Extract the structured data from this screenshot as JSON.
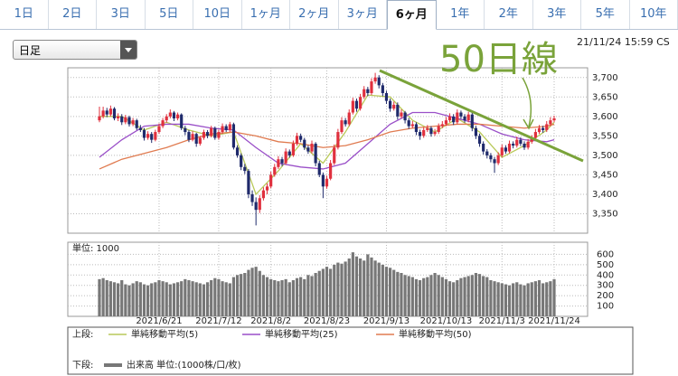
{
  "tabs": [
    "1日",
    "2日",
    "3日",
    "5日",
    "10日",
    "1ヶ月",
    "2ヶ月",
    "3ヶ月",
    "6ヶ月",
    "1年",
    "2年",
    "3年",
    "5年",
    "10年"
  ],
  "selected_tab": "6ヶ月",
  "dropdown": "日足",
  "timestamp": "21/11/24 15:59 CS",
  "chart_data": {
    "type": "candlestick",
    "annotation": "50日線",
    "up_color": "#e0303e",
    "down_color": "#1f2a6b",
    "categories": [
      null,
      null,
      null,
      null,
      null,
      null,
      null,
      null,
      null,
      null,
      null,
      null,
      null,
      null,
      null,
      null,
      "2021/6/21",
      null,
      null,
      null,
      null,
      null,
      null,
      null,
      null,
      null,
      null,
      null,
      null,
      null,
      null,
      null,
      "2021/7/12",
      null,
      null,
      null,
      null,
      null,
      null,
      null,
      null,
      null,
      null,
      null,
      null,
      null,
      "2021/8/2",
      null,
      null,
      null,
      null,
      null,
      null,
      null,
      null,
      null,
      null,
      null,
      null,
      null,
      null,
      "2021/8/23",
      null,
      null,
      null,
      null,
      null,
      null,
      null,
      null,
      null,
      null,
      null,
      null,
      null,
      null,
      null,
      "2021/9/13",
      null,
      null,
      null,
      null,
      null,
      null,
      null,
      null,
      null,
      null,
      null,
      null,
      null,
      null,
      null,
      "2021/10/13",
      null,
      null,
      null,
      null,
      null,
      null,
      null,
      null,
      null,
      null,
      null,
      null,
      null,
      null,
      "2021/11/3",
      null,
      null,
      null,
      null,
      null,
      null,
      null,
      null,
      null,
      null,
      null,
      null,
      null,
      "2021/11/24"
    ],
    "ohlc": [
      [
        3590,
        3625,
        3585,
        3600
      ],
      [
        3600,
        3625,
        3595,
        3615
      ],
      [
        3615,
        3622,
        3598,
        3605
      ],
      [
        3605,
        3628,
        3600,
        3620
      ],
      [
        3620,
        3624,
        3590,
        3595
      ],
      [
        3595,
        3608,
        3588,
        3600
      ],
      [
        3600,
        3606,
        3578,
        3585
      ],
      [
        3585,
        3604,
        3580,
        3598
      ],
      [
        3598,
        3602,
        3574,
        3580
      ],
      [
        3580,
        3596,
        3575,
        3590
      ],
      [
        3590,
        3594,
        3565,
        3570
      ],
      [
        3570,
        3578,
        3560,
        3565
      ],
      [
        3565,
        3570,
        3538,
        3545
      ],
      [
        3545,
        3562,
        3540,
        3555
      ],
      [
        3555,
        3560,
        3532,
        3540
      ],
      [
        3540,
        3566,
        3536,
        3560
      ],
      [
        3560,
        3582,
        3555,
        3575
      ],
      [
        3575,
        3596,
        3570,
        3590
      ],
      [
        3590,
        3606,
        3584,
        3600
      ],
      [
        3600,
        3618,
        3595,
        3610
      ],
      [
        3610,
        3614,
        3588,
        3595
      ],
      [
        3595,
        3610,
        3590,
        3605
      ],
      [
        3605,
        3608,
        3565,
        3570
      ],
      [
        3570,
        3576,
        3552,
        3560
      ],
      [
        3560,
        3565,
        3534,
        3540
      ],
      [
        3540,
        3562,
        3536,
        3555
      ],
      [
        3555,
        3558,
        3522,
        3530
      ],
      [
        3530,
        3550,
        3525,
        3545
      ],
      [
        3545,
        3566,
        3540,
        3560
      ],
      [
        3560,
        3565,
        3544,
        3550
      ],
      [
        3550,
        3576,
        3546,
        3570
      ],
      [
        3570,
        3574,
        3540,
        3545
      ],
      [
        3545,
        3566,
        3540,
        3560
      ],
      [
        3560,
        3582,
        3555,
        3575
      ],
      [
        3575,
        3580,
        3560,
        3565
      ],
      [
        3565,
        3586,
        3560,
        3580
      ],
      [
        3580,
        3584,
        3515,
        3520
      ],
      [
        3520,
        3526,
        3494,
        3500
      ],
      [
        3500,
        3505,
        3462,
        3470
      ],
      [
        3470,
        3478,
        3452,
        3460
      ],
      [
        3460,
        3465,
        3390,
        3400
      ],
      [
        3400,
        3410,
        3370,
        3380
      ],
      [
        3380,
        3392,
        3320,
        3360
      ],
      [
        3360,
        3398,
        3352,
        3390
      ],
      [
        3390,
        3418,
        3384,
        3410
      ],
      [
        3410,
        3428,
        3400,
        3420
      ],
      [
        3420,
        3458,
        3415,
        3450
      ],
      [
        3450,
        3478,
        3445,
        3470
      ],
      [
        3470,
        3498,
        3465,
        3490
      ],
      [
        3490,
        3496,
        3472,
        3480
      ],
      [
        3480,
        3518,
        3476,
        3510
      ],
      [
        3510,
        3515,
        3494,
        3500
      ],
      [
        3500,
        3538,
        3496,
        3530
      ],
      [
        3530,
        3558,
        3525,
        3550
      ],
      [
        3550,
        3556,
        3534,
        3540
      ],
      [
        3540,
        3545,
        3514,
        3520
      ],
      [
        3520,
        3526,
        3504,
        3510
      ],
      [
        3510,
        3538,
        3505,
        3530
      ],
      [
        3530,
        3534,
        3472,
        3480
      ],
      [
        3480,
        3486,
        3444,
        3450
      ],
      [
        3450,
        3456,
        3390,
        3420
      ],
      [
        3420,
        3448,
        3414,
        3440
      ],
      [
        3440,
        3488,
        3436,
        3480
      ],
      [
        3480,
        3528,
        3475,
        3520
      ],
      [
        3520,
        3568,
        3515,
        3560
      ],
      [
        3560,
        3598,
        3555,
        3590
      ],
      [
        3590,
        3596,
        3574,
        3580
      ],
      [
        3580,
        3618,
        3575,
        3610
      ],
      [
        3610,
        3648,
        3605,
        3640
      ],
      [
        3640,
        3646,
        3612,
        3620
      ],
      [
        3620,
        3658,
        3615,
        3650
      ],
      [
        3650,
        3678,
        3645,
        3670
      ],
      [
        3670,
        3676,
        3652,
        3660
      ],
      [
        3660,
        3698,
        3655,
        3690
      ],
      [
        3690,
        3712,
        3684,
        3700
      ],
      [
        3700,
        3706,
        3672,
        3680
      ],
      [
        3680,
        3686,
        3652,
        3660
      ],
      [
        3660,
        3666,
        3632,
        3640
      ],
      [
        3640,
        3646,
        3612,
        3620
      ],
      [
        3620,
        3638,
        3615,
        3630
      ],
      [
        3630,
        3636,
        3592,
        3600
      ],
      [
        3600,
        3618,
        3595,
        3610
      ],
      [
        3610,
        3614,
        3582,
        3590
      ],
      [
        3590,
        3596,
        3568,
        3575
      ],
      [
        3575,
        3588,
        3570,
        3580
      ],
      [
        3580,
        3585,
        3552,
        3560
      ],
      [
        3560,
        3566,
        3540,
        3550
      ],
      [
        3550,
        3572,
        3545,
        3565
      ],
      [
        3565,
        3578,
        3560,
        3570
      ],
      [
        3570,
        3575,
        3548,
        3555
      ],
      [
        3555,
        3568,
        3550,
        3560
      ],
      [
        3560,
        3582,
        3555,
        3575
      ],
      [
        3575,
        3588,
        3570,
        3580
      ],
      [
        3580,
        3598,
        3575,
        3590
      ],
      [
        3590,
        3608,
        3585,
        3600
      ],
      [
        3600,
        3606,
        3578,
        3585
      ],
      [
        3585,
        3618,
        3580,
        3610
      ],
      [
        3610,
        3615,
        3594,
        3600
      ],
      [
        3600,
        3606,
        3584,
        3590
      ],
      [
        3590,
        3612,
        3585,
        3605
      ],
      [
        3605,
        3610,
        3562,
        3570
      ],
      [
        3570,
        3576,
        3542,
        3550
      ],
      [
        3550,
        3556,
        3522,
        3530
      ],
      [
        3530,
        3536,
        3502,
        3510
      ],
      [
        3510,
        3516,
        3492,
        3500
      ],
      [
        3500,
        3506,
        3482,
        3490
      ],
      [
        3490,
        3496,
        3455,
        3480
      ],
      [
        3480,
        3508,
        3475,
        3500
      ],
      [
        3500,
        3528,
        3495,
        3520
      ],
      [
        3520,
        3526,
        3504,
        3510
      ],
      [
        3510,
        3538,
        3505,
        3530
      ],
      [
        3530,
        3536,
        3518,
        3525
      ],
      [
        3525,
        3548,
        3520,
        3540
      ],
      [
        3540,
        3546,
        3524,
        3530
      ],
      [
        3530,
        3536,
        3514,
        3520
      ],
      [
        3520,
        3542,
        3515,
        3535
      ],
      [
        3535,
        3552,
        3530,
        3545
      ],
      [
        3545,
        3568,
        3540,
        3560
      ],
      [
        3560,
        3578,
        3555,
        3570
      ],
      [
        3570,
        3576,
        3558,
        3565
      ],
      [
        3565,
        3588,
        3560,
        3580
      ],
      [
        3580,
        3598,
        3575,
        3590
      ],
      [
        3590,
        3602,
        3585,
        3595
      ]
    ],
    "ylim": [
      3300,
      3725
    ],
    "yticks": [
      {
        "value": 3350,
        "label": "3,350"
      },
      {
        "value": 3400,
        "label": "3,400"
      },
      {
        "value": 3450,
        "label": "3,450"
      },
      {
        "value": 3500,
        "label": "3,500"
      },
      {
        "value": 3550,
        "label": "3,550"
      },
      {
        "value": 3600,
        "label": "3,600"
      },
      {
        "value": 3650,
        "label": "3,650"
      },
      {
        "value": 3700,
        "label": "3,700"
      }
    ],
    "ma_series": [
      {
        "name": "単純移動平均(5)",
        "color": "#b9c95a",
        "x": [
          0,
          6,
          12,
          18,
          24,
          30,
          36,
          42,
          48,
          54,
          60,
          66,
          72,
          78,
          84,
          90,
          96,
          102,
          108,
          114,
          120,
          122
        ],
        "values": [
          3600,
          3600,
          3565,
          3585,
          3565,
          3550,
          3560,
          3400,
          3460,
          3530,
          3480,
          3560,
          3655,
          3650,
          3590,
          3560,
          3595,
          3560,
          3495,
          3525,
          3565,
          3585
        ]
      },
      {
        "name": "単純移動平均(25)",
        "color": "#9a4fc8",
        "x": [
          0,
          6,
          12,
          18,
          24,
          30,
          36,
          42,
          48,
          54,
          60,
          66,
          72,
          78,
          84,
          90,
          96,
          102,
          108,
          114,
          120,
          122
        ],
        "values": [
          3495,
          3540,
          3575,
          3580,
          3580,
          3570,
          3565,
          3520,
          3480,
          3470,
          3465,
          3480,
          3530,
          3580,
          3610,
          3610,
          3595,
          3580,
          3555,
          3540,
          3535,
          3540
        ]
      },
      {
        "name": "単純移動平均(50)",
        "color": "#e07b50",
        "x": [
          0,
          6,
          12,
          18,
          24,
          30,
          36,
          42,
          48,
          54,
          60,
          66,
          72,
          78,
          84,
          90,
          96,
          102,
          108,
          114,
          120,
          122
        ],
        "values": [
          3465,
          3490,
          3505,
          3520,
          3540,
          3555,
          3560,
          3550,
          3535,
          3530,
          3520,
          3525,
          3540,
          3560,
          3570,
          3575,
          3580,
          3580,
          3575,
          3570,
          3575,
          3580
        ]
      }
    ],
    "volume": {
      "label": "単位: 1000",
      "name": "出来高 単位:(1000株/口/枚)",
      "color": "#777777",
      "ylim": [
        0,
        700
      ],
      "yticks": [
        100,
        200,
        300,
        400,
        500,
        600
      ],
      "values": [
        360,
        370,
        350,
        340,
        330,
        320,
        350,
        310,
        300,
        320,
        340,
        330,
        310,
        300,
        320,
        330,
        350,
        340,
        330,
        310,
        320,
        330,
        340,
        360,
        350,
        340,
        330,
        320,
        310,
        330,
        350,
        370,
        360,
        340,
        330,
        320,
        380,
        400,
        410,
        420,
        450,
        470,
        480,
        440,
        400,
        380,
        360,
        350,
        340,
        350,
        360,
        330,
        350,
        370,
        380,
        360,
        400,
        390,
        420,
        440,
        460,
        480,
        460,
        500,
        520,
        510,
        530,
        560,
        620,
        580,
        560,
        540,
        600,
        570,
        540,
        520,
        500,
        480,
        470,
        450,
        430,
        420,
        400,
        390,
        380,
        360,
        350,
        370,
        380,
        400,
        420,
        400,
        380,
        360,
        340,
        330,
        350,
        370,
        380,
        390,
        400,
        420,
        410,
        390,
        380,
        350,
        340,
        330,
        320,
        310,
        300,
        320,
        330,
        310,
        300,
        320,
        330,
        340,
        350,
        320,
        330,
        340,
        360
      ]
    },
    "legend": {
      "upper_label": "上段:",
      "lower_label": "下段:"
    }
  }
}
